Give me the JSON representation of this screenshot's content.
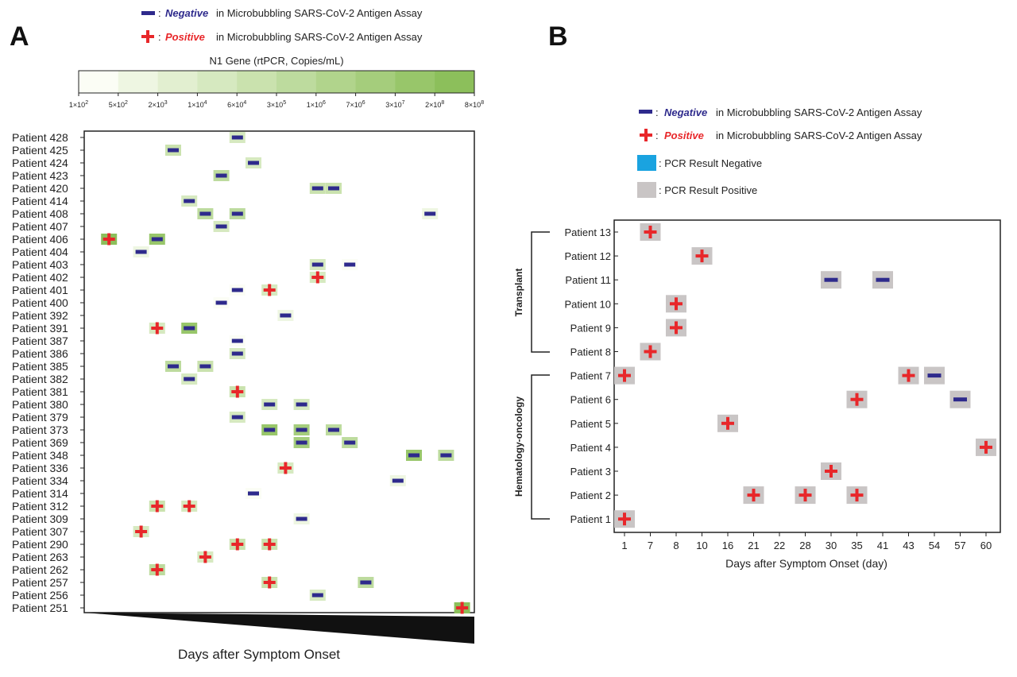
{
  "colors": {
    "negative": "#2e2a8c",
    "positive": "#e8272a",
    "pcr_negative": "#1aa3e0",
    "pcr_positive": "#c9c5c5",
    "green_scale": [
      "#fbfdf5",
      "#eef6e2",
      "#e2efd0",
      "#d6e9c0",
      "#cae2ae",
      "#bddb9e",
      "#b1d48c",
      "#a5cd7c",
      "#98c66a",
      "#8cbf5b"
    ]
  },
  "panel_a": {
    "letter": "A",
    "legend": {
      "negative_label": "Negative",
      "positive_label": "Positive",
      "suffix": "in Microbubbling SARS-CoV-2 Antigen Assay",
      "sep": ":"
    },
    "colorbar": {
      "title": "N1 Gene (rtPCR, Copies/mL)",
      "ticks": [
        {
          "m": "1×10",
          "e": "2"
        },
        {
          "m": "5×10",
          "e": "2"
        },
        {
          "m": "2×10",
          "e": "3"
        },
        {
          "m": "1×10",
          "e": "4"
        },
        {
          "m": "6×10",
          "e": "4"
        },
        {
          "m": "3×10",
          "e": "5"
        },
        {
          "m": "1×10",
          "e": "6"
        },
        {
          "m": "7×10",
          "e": "6"
        },
        {
          "m": "3×10",
          "e": "7"
        },
        {
          "m": "2×10",
          "e": "8"
        },
        {
          "m": "8×10",
          "e": "8"
        }
      ]
    },
    "xlabel": "Days after Symptom Onset"
  },
  "panel_b": {
    "letter": "B",
    "legend": {
      "negative_label": "Negative",
      "positive_label": "Positive",
      "suffix": "in Microbubbling SARS-CoV-2 Antigen Assay",
      "sep": ":",
      "pcr_negative_label": ": PCR Result  Negative",
      "pcr_positive_label": ": PCR Result  Positive"
    },
    "group_transplant": "Transplant",
    "group_hemonc": "Hematology-oncology",
    "xlabel": "Days after Symptom Onset (day)"
  },
  "chart_data": [
    {
      "type": "heatmap",
      "panel": "A",
      "xlabel": "Days after Symptom Onset",
      "colorbar_title": "N1 Gene (rtPCR, Copies/mL)",
      "x_axis": "unlabeled, increasing days (ordinal columns 1-24)",
      "patients": [
        "Patient 428",
        "Patient 425",
        "Patient 424",
        "Patient 423",
        "Patient 420",
        "Patient 414",
        "Patient 408",
        "Patient 407",
        "Patient 406",
        "Patient 404",
        "Patient 403",
        "Patient 402",
        "Patient 401",
        "Patient 400",
        "Patient 392",
        "Patient 391",
        "Patient 387",
        "Patient 386",
        "Patient 385",
        "Patient 382",
        "Patient 381",
        "Patient 380",
        "Patient 379",
        "Patient 373",
        "Patient 369",
        "Patient 348",
        "Patient 336",
        "Patient 334",
        "Patient 314",
        "Patient 312",
        "Patient 309",
        "Patient 307",
        "Patient 290",
        "Patient 263",
        "Patient 262",
        "Patient 257",
        "Patient 256",
        "Patient 251"
      ],
      "tests": [
        {
          "patient": "Patient 428",
          "col": 10,
          "result": "negative",
          "level": 3
        },
        {
          "patient": "Patient 425",
          "col": 6,
          "result": "negative",
          "level": 4
        },
        {
          "patient": "Patient 424",
          "col": 11,
          "result": "negative",
          "level": 3
        },
        {
          "patient": "Patient 423",
          "col": 9,
          "result": "negative",
          "level": 5
        },
        {
          "patient": "Patient 420",
          "col": 15,
          "result": "negative",
          "level": 4
        },
        {
          "patient": "Patient 420",
          "col": 16,
          "result": "negative",
          "level": 4
        },
        {
          "patient": "Patient 414",
          "col": 7,
          "result": "negative",
          "level": 3
        },
        {
          "patient": "Patient 408",
          "col": 8,
          "result": "negative",
          "level": 5
        },
        {
          "patient": "Patient 408",
          "col": 10,
          "result": "negative",
          "level": 5
        },
        {
          "patient": "Patient 408",
          "col": 22,
          "result": "negative",
          "level": 1
        },
        {
          "patient": "Patient 407",
          "col": 9,
          "result": "negative",
          "level": 3
        },
        {
          "patient": "Patient 406",
          "col": 2,
          "result": "positive",
          "level": 9
        },
        {
          "patient": "Patient 406",
          "col": 5,
          "result": "negative",
          "level": 8
        },
        {
          "patient": "Patient 404",
          "col": 4,
          "result": "negative",
          "level": 1
        },
        {
          "patient": "Patient 403",
          "col": 15,
          "result": "negative",
          "level": 3
        },
        {
          "patient": "Patient 403",
          "col": 17,
          "result": "negative",
          "level": 0
        },
        {
          "patient": "Patient 402",
          "col": 15,
          "result": "positive",
          "level": 3
        },
        {
          "patient": "Patient 401",
          "col": 10,
          "result": "negative",
          "level": 0
        },
        {
          "patient": "Patient 401",
          "col": 12,
          "result": "positive",
          "level": 3
        },
        {
          "patient": "Patient 400",
          "col": 9,
          "result": "negative",
          "level": 0
        },
        {
          "patient": "Patient 392",
          "col": 13,
          "result": "negative",
          "level": 1
        },
        {
          "patient": "Patient 391",
          "col": 5,
          "result": "positive",
          "level": 3
        },
        {
          "patient": "Patient 391",
          "col": 7,
          "result": "negative",
          "level": 8
        },
        {
          "patient": "Patient 387",
          "col": 10,
          "result": "negative",
          "level": 0
        },
        {
          "patient": "Patient 386",
          "col": 10,
          "result": "negative",
          "level": 3
        },
        {
          "patient": "Patient 385",
          "col": 6,
          "result": "negative",
          "level": 5
        },
        {
          "patient": "Patient 385",
          "col": 8,
          "result": "negative",
          "level": 4
        },
        {
          "patient": "Patient 382",
          "col": 7,
          "result": "negative",
          "level": 3
        },
        {
          "patient": "Patient 381",
          "col": 10,
          "result": "positive",
          "level": 4
        },
        {
          "patient": "Patient 380",
          "col": 12,
          "result": "negative",
          "level": 3
        },
        {
          "patient": "Patient 380",
          "col": 14,
          "result": "negative",
          "level": 3
        },
        {
          "patient": "Patient 379",
          "col": 10,
          "result": "negative",
          "level": 3
        },
        {
          "patient": "Patient 373",
          "col": 12,
          "result": "negative",
          "level": 8
        },
        {
          "patient": "Patient 373",
          "col": 14,
          "result": "negative",
          "level": 7
        },
        {
          "patient": "Patient 373",
          "col": 16,
          "result": "negative",
          "level": 5
        },
        {
          "patient": "Patient 369",
          "col": 14,
          "result": "negative",
          "level": 7
        },
        {
          "patient": "Patient 369",
          "col": 17,
          "result": "negative",
          "level": 5
        },
        {
          "patient": "Patient 348",
          "col": 21,
          "result": "negative",
          "level": 8
        },
        {
          "patient": "Patient 348",
          "col": 23,
          "result": "negative",
          "level": 5
        },
        {
          "patient": "Patient 336",
          "col": 13,
          "result": "positive",
          "level": 3
        },
        {
          "patient": "Patient 334",
          "col": 20,
          "result": "negative",
          "level": 1
        },
        {
          "patient": "Patient 314",
          "col": 11,
          "result": "negative",
          "level": 0
        },
        {
          "patient": "Patient 312",
          "col": 5,
          "result": "positive",
          "level": 4
        },
        {
          "patient": "Patient 312",
          "col": 7,
          "result": "positive",
          "level": 3
        },
        {
          "patient": "Patient 309",
          "col": 14,
          "result": "negative",
          "level": 1
        },
        {
          "patient": "Patient 307",
          "col": 4,
          "result": "positive",
          "level": 3
        },
        {
          "patient": "Patient 290",
          "col": 10,
          "result": "positive",
          "level": 4
        },
        {
          "patient": "Patient 290",
          "col": 12,
          "result": "positive",
          "level": 4
        },
        {
          "patient": "Patient 263",
          "col": 8,
          "result": "positive",
          "level": 3
        },
        {
          "patient": "Patient 262",
          "col": 5,
          "result": "positive",
          "level": 5
        },
        {
          "patient": "Patient 257",
          "col": 12,
          "result": "positive",
          "level": 4
        },
        {
          "patient": "Patient 257",
          "col": 18,
          "result": "negative",
          "level": 5
        },
        {
          "patient": "Patient 256",
          "col": 15,
          "result": "negative",
          "level": 3
        },
        {
          "patient": "Patient 251",
          "col": 24,
          "result": "positive",
          "level": 9
        }
      ]
    },
    {
      "type": "scatter",
      "panel": "B",
      "xlabel": "Days after Symptom Onset (day)",
      "x_categories": [
        "1",
        "7",
        "8",
        "10",
        "16",
        "21",
        "22",
        "28",
        "30",
        "35",
        "41",
        "43",
        "54",
        "57",
        "60"
      ],
      "patients": [
        "Patient 13",
        "Patient 12",
        "Patient 11",
        "Patient 10",
        "Patient 9",
        "Patient 8",
        "Patient 7",
        "Patient 6",
        "Patient 5",
        "Patient 4",
        "Patient 3",
        "Patient 2",
        "Patient 1"
      ],
      "groups": [
        {
          "name": "Transplant",
          "patients": [
            "Patient 13",
            "Patient 12",
            "Patient 11",
            "Patient 10",
            "Patient 9",
            "Patient 8"
          ]
        },
        {
          "name": "Hematology-oncology",
          "patients": [
            "Patient 7",
            "Patient 6",
            "Patient 5",
            "Patient 4",
            "Patient 3",
            "Patient 2",
            "Patient 1"
          ]
        }
      ],
      "tests": [
        {
          "patient": "Patient 13",
          "day": "7",
          "result": "positive",
          "pcr": "positive"
        },
        {
          "patient": "Patient 12",
          "day": "10",
          "result": "positive",
          "pcr": "positive"
        },
        {
          "patient": "Patient 11",
          "day": "30",
          "result": "negative",
          "pcr": "positive"
        },
        {
          "patient": "Patient 11",
          "day": "41",
          "result": "negative",
          "pcr": "positive"
        },
        {
          "patient": "Patient 10",
          "day": "8",
          "result": "positive",
          "pcr": "positive"
        },
        {
          "patient": "Patient 9",
          "day": "8",
          "result": "positive",
          "pcr": "positive"
        },
        {
          "patient": "Patient 8",
          "day": "7",
          "result": "positive",
          "pcr": "positive"
        },
        {
          "patient": "Patient 7",
          "day": "1",
          "result": "positive",
          "pcr": "positive"
        },
        {
          "patient": "Patient 7",
          "day": "43",
          "result": "positive",
          "pcr": "positive"
        },
        {
          "patient": "Patient 7",
          "day": "54",
          "result": "negative",
          "pcr": "positive"
        },
        {
          "patient": "Patient 6",
          "day": "35",
          "result": "positive",
          "pcr": "positive"
        },
        {
          "patient": "Patient 6",
          "day": "57",
          "result": "negative",
          "pcr": "positive"
        },
        {
          "patient": "Patient 5",
          "day": "16",
          "result": "positive",
          "pcr": "positive"
        },
        {
          "patient": "Patient 4",
          "day": "60",
          "result": "positive",
          "pcr": "positive"
        },
        {
          "patient": "Patient 3",
          "day": "30",
          "result": "positive",
          "pcr": "positive"
        },
        {
          "patient": "Patient 2",
          "day": "21",
          "result": "positive",
          "pcr": "positive"
        },
        {
          "patient": "Patient 2",
          "day": "28",
          "result": "positive",
          "pcr": "positive"
        },
        {
          "patient": "Patient 2",
          "day": "35",
          "result": "positive",
          "pcr": "positive"
        },
        {
          "patient": "Patient 1",
          "day": "1",
          "result": "positive",
          "pcr": "positive"
        }
      ]
    }
  ]
}
